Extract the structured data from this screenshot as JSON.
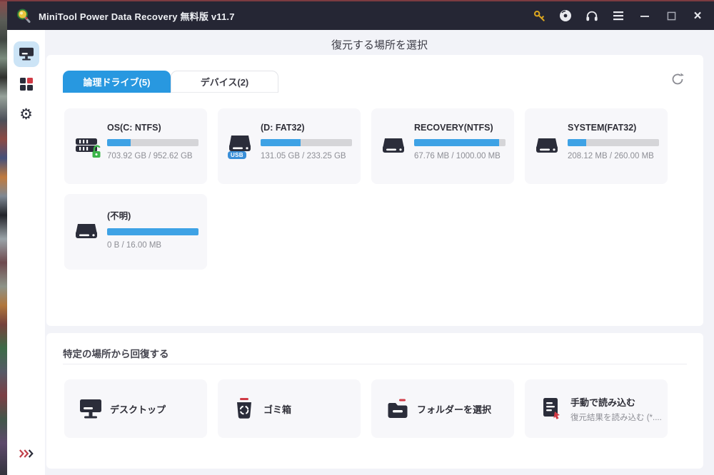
{
  "window": {
    "title": "MiniTool Power Data Recovery 無料版 v11.7",
    "titlebar_icons": [
      "key-icon",
      "disc-icon",
      "headset-icon",
      "menu-icon",
      "minimize-icon",
      "maximize-icon",
      "close-icon"
    ],
    "close_glyph": "×"
  },
  "sidebar": {
    "items": [
      {
        "name": "device-scan",
        "icon": "monitor-icon",
        "selected": true
      },
      {
        "name": "more-tools",
        "icon": "grid-icon",
        "selected": false
      },
      {
        "name": "settings",
        "icon": "gear-icon",
        "selected": false
      }
    ],
    "expand_icon": "triple-chevron-icon",
    "gear_glyph": "⚙"
  },
  "header": {
    "title": "復元する場所を選択"
  },
  "tabs": [
    {
      "label": "論理ドライブ(5)",
      "active": true
    },
    {
      "label": "デバイス(2)",
      "active": false
    }
  ],
  "refresh_icon": "refresh-icon",
  "drives": [
    {
      "name": "OS(C: NTFS)",
      "size": "703.92 GB / 952.62 GB",
      "used_percent": 26,
      "badge": "unlocked-lock",
      "icon": "internal-drive-icon"
    },
    {
      "name": "(D: FAT32)",
      "size": "131.05 GB / 233.25 GB",
      "used_percent": 44,
      "badge": "usb",
      "badge_label": "USB",
      "icon": "drive-icon"
    },
    {
      "name": "RECOVERY(NTFS)",
      "size": "67.76 MB / 1000.00 MB",
      "used_percent": 93,
      "badge": "none",
      "icon": "drive-icon"
    },
    {
      "name": "SYSTEM(FAT32)",
      "size": "208.12 MB / 260.00 MB",
      "used_percent": 20,
      "badge": "none",
      "icon": "drive-icon"
    },
    {
      "name": "(不明)",
      "size": "0 B / 16.00 MB",
      "used_percent": 100,
      "badge": "none",
      "icon": "drive-icon"
    }
  ],
  "recover_section": {
    "title": "特定の場所から回復する",
    "items": [
      {
        "label": "デスクトップ",
        "icon": "desktop-icon"
      },
      {
        "label": "ゴミ箱",
        "icon": "trash-icon"
      },
      {
        "label": "フォルダーを選択",
        "icon": "folder-icon"
      },
      {
        "label": "手動で読み込む",
        "sublabel": "復元結果を読み込む (*....",
        "icon": "load-result-icon"
      }
    ]
  },
  "colors": {
    "titlebar_bg": "#252634",
    "accent_blue": "#2898e0",
    "progress_blue": "#3ea2e5",
    "icon_navy": "#2b2d3a",
    "accent_red": "#d03a45",
    "lock_green": "#3cb54a",
    "key_gold": "#d9a520"
  }
}
